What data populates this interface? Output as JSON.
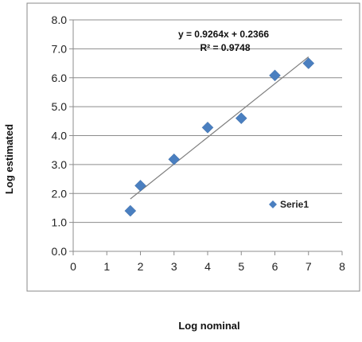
{
  "chart_data": {
    "type": "scatter",
    "xlabel": "Log nominal",
    "ylabel": "Log estimated",
    "xlim": [
      0,
      8
    ],
    "ylim": [
      0,
      8
    ],
    "x_ticks": [
      "0",
      "1",
      "2",
      "3",
      "4",
      "5",
      "6",
      "7",
      "8"
    ],
    "y_ticks": [
      "0.0",
      "1.0",
      "2.0",
      "3.0",
      "4.0",
      "5.0",
      "6.0",
      "7.0",
      "8.0"
    ],
    "grid": "horizontal",
    "legend_position": "right",
    "series": [
      {
        "name": "Serie1",
        "color": "#4a7fc0",
        "marker": "diamond",
        "points": [
          {
            "x": 1.7,
            "y": 1.4
          },
          {
            "x": 2.0,
            "y": 2.27
          },
          {
            "x": 3.0,
            "y": 3.18
          },
          {
            "x": 4.0,
            "y": 4.28
          },
          {
            "x": 5.0,
            "y": 4.6
          },
          {
            "x": 6.0,
            "y": 6.08
          },
          {
            "x": 7.0,
            "y": 6.5
          }
        ]
      }
    ],
    "trendline": {
      "slope": 0.9264,
      "intercept": 0.2366,
      "x_range": [
        1.7,
        7.0
      ],
      "color": "#7f7f7f"
    },
    "annotations": {
      "equation": "y = 0.9264x + 0.2366",
      "r_squared": "R² = 0.9748"
    }
  }
}
